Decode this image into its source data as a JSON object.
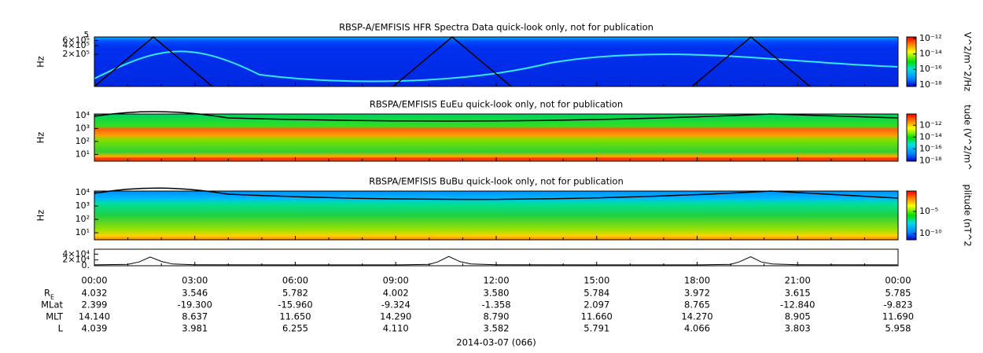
{
  "chart_data": [
    {
      "type": "spectrogram",
      "title": "RBSP-A/EMFISIS  HFR Spectra Data quick-look only, not for publication",
      "y_label": "Hz",
      "log_y": true,
      "ylim": [
        15000,
        800000
      ],
      "y_top_label": "5",
      "yticks": [
        {
          "value": 200000,
          "label": "2×10⁵"
        },
        {
          "value": 400000,
          "label": "4×10⁵"
        },
        {
          "value": 600000,
          "label": "6×10⁵"
        }
      ],
      "colorbar": {
        "label": "V^2/m^2/Hz",
        "log": true,
        "clim": [
          6e-19,
          1.6e-12
        ],
        "ticks": [
          {
            "value": 1e-12,
            "label": "10⁻¹²"
          },
          {
            "value": 1e-14,
            "label": "10⁻¹⁴"
          },
          {
            "value": 1e-16,
            "label": "10⁻¹⁶"
          },
          {
            "value": 1e-18,
            "label": "10⁻¹⁸"
          }
        ]
      }
    },
    {
      "type": "spectrogram",
      "title": "RBSPA/EMFISIS  EuEu quick-look only, not for publication",
      "y_label": "Hz",
      "log_y": true,
      "ylim": [
        3,
        13000
      ],
      "yticks": [
        {
          "value": 10,
          "label": "10¹"
        },
        {
          "value": 100,
          "label": "10²"
        },
        {
          "value": 1000,
          "label": "10³"
        },
        {
          "value": 10000,
          "label": "10⁴"
        }
      ],
      "colorbar": {
        "label": "tude (V^2/m^",
        "log": true,
        "clim": [
          8e-19,
          8e-11
        ],
        "ticks": [
          {
            "value": 1e-12,
            "label": "10⁻¹²"
          },
          {
            "value": 1e-14,
            "label": "10⁻¹⁴"
          },
          {
            "value": 1e-16,
            "label": "10⁻¹⁶"
          },
          {
            "value": 1e-18,
            "label": "10⁻¹⁸"
          }
        ]
      }
    },
    {
      "type": "spectrogram",
      "title": "RBSPA/EMFISIS  BuBu quick-look only, not for publication",
      "y_label": "Hz",
      "log_y": true,
      "ylim": [
        3,
        13000
      ],
      "yticks": [
        {
          "value": 10,
          "label": "10¹"
        },
        {
          "value": 100,
          "label": "10²"
        },
        {
          "value": 1000,
          "label": "10³"
        },
        {
          "value": 10000,
          "label": "10⁴"
        }
      ],
      "colorbar": {
        "label": "plitude (nT^2",
        "log": true,
        "clim": [
          4e-12,
          0.4
        ],
        "ticks": [
          {
            "value": 1e-05,
            "label": "10⁻⁵"
          },
          {
            "value": 1e-10,
            "label": "10⁻¹⁰"
          }
        ]
      }
    },
    {
      "type": "line",
      "color": "#000000",
      "ylim": [
        0,
        57000
      ],
      "yticks": [
        {
          "value": 0,
          "label": "0."
        },
        {
          "value": 20000,
          "label": "2×10⁴"
        },
        {
          "value": 40000,
          "label": "4×10⁴"
        }
      ],
      "x": [
        "00:00",
        "01:00",
        "01:20",
        "01:40",
        "02:00",
        "02:20",
        "03:00",
        "06:00",
        "09:00",
        "10:00",
        "10:15",
        "10:35",
        "10:55",
        "11:15",
        "12:00",
        "15:00",
        "18:00",
        "19:00",
        "19:15",
        "19:36",
        "19:55",
        "20:15",
        "21:00",
        "23:59"
      ],
      "values": [
        3000,
        5000,
        13000,
        30000,
        15000,
        6000,
        3500,
        3000,
        3000,
        5000,
        13000,
        32000,
        14000,
        6000,
        3500,
        3000,
        3000,
        5000,
        13000,
        31000,
        13000,
        6000,
        3500,
        3000
      ]
    }
  ],
  "x_axis": {
    "ticks": [
      "00:00",
      "03:00",
      "06:00",
      "09:00",
      "12:00",
      "15:00",
      "18:00",
      "21:00",
      "00:00"
    ],
    "date_label": "2014-03-07 (066)"
  },
  "ephemeris": {
    "rows": [
      {
        "label": "R",
        "subscript": "E",
        "values": [
          "4.032",
          "3.546",
          "5.782",
          "4.002",
          "3.580",
          "5.784",
          "3.972",
          "3.615",
          "5.785"
        ]
      },
      {
        "label": "MLat",
        "values": [
          "2.399",
          "-19.300",
          "-15.960",
          "-9.324",
          "-1.358",
          "2.097",
          "8.765",
          "-12.840",
          "-9.823"
        ]
      },
      {
        "label": "MLT",
        "values": [
          "14.140",
          "8.637",
          "11.650",
          "14.290",
          "8.790",
          "11.660",
          "14.270",
          "8.905",
          "11.690"
        ]
      },
      {
        "label": "L",
        "values": [
          "4.039",
          "3.981",
          "6.255",
          "4.110",
          "3.582",
          "5.791",
          "4.066",
          "3.803",
          "5.958"
        ]
      }
    ]
  }
}
